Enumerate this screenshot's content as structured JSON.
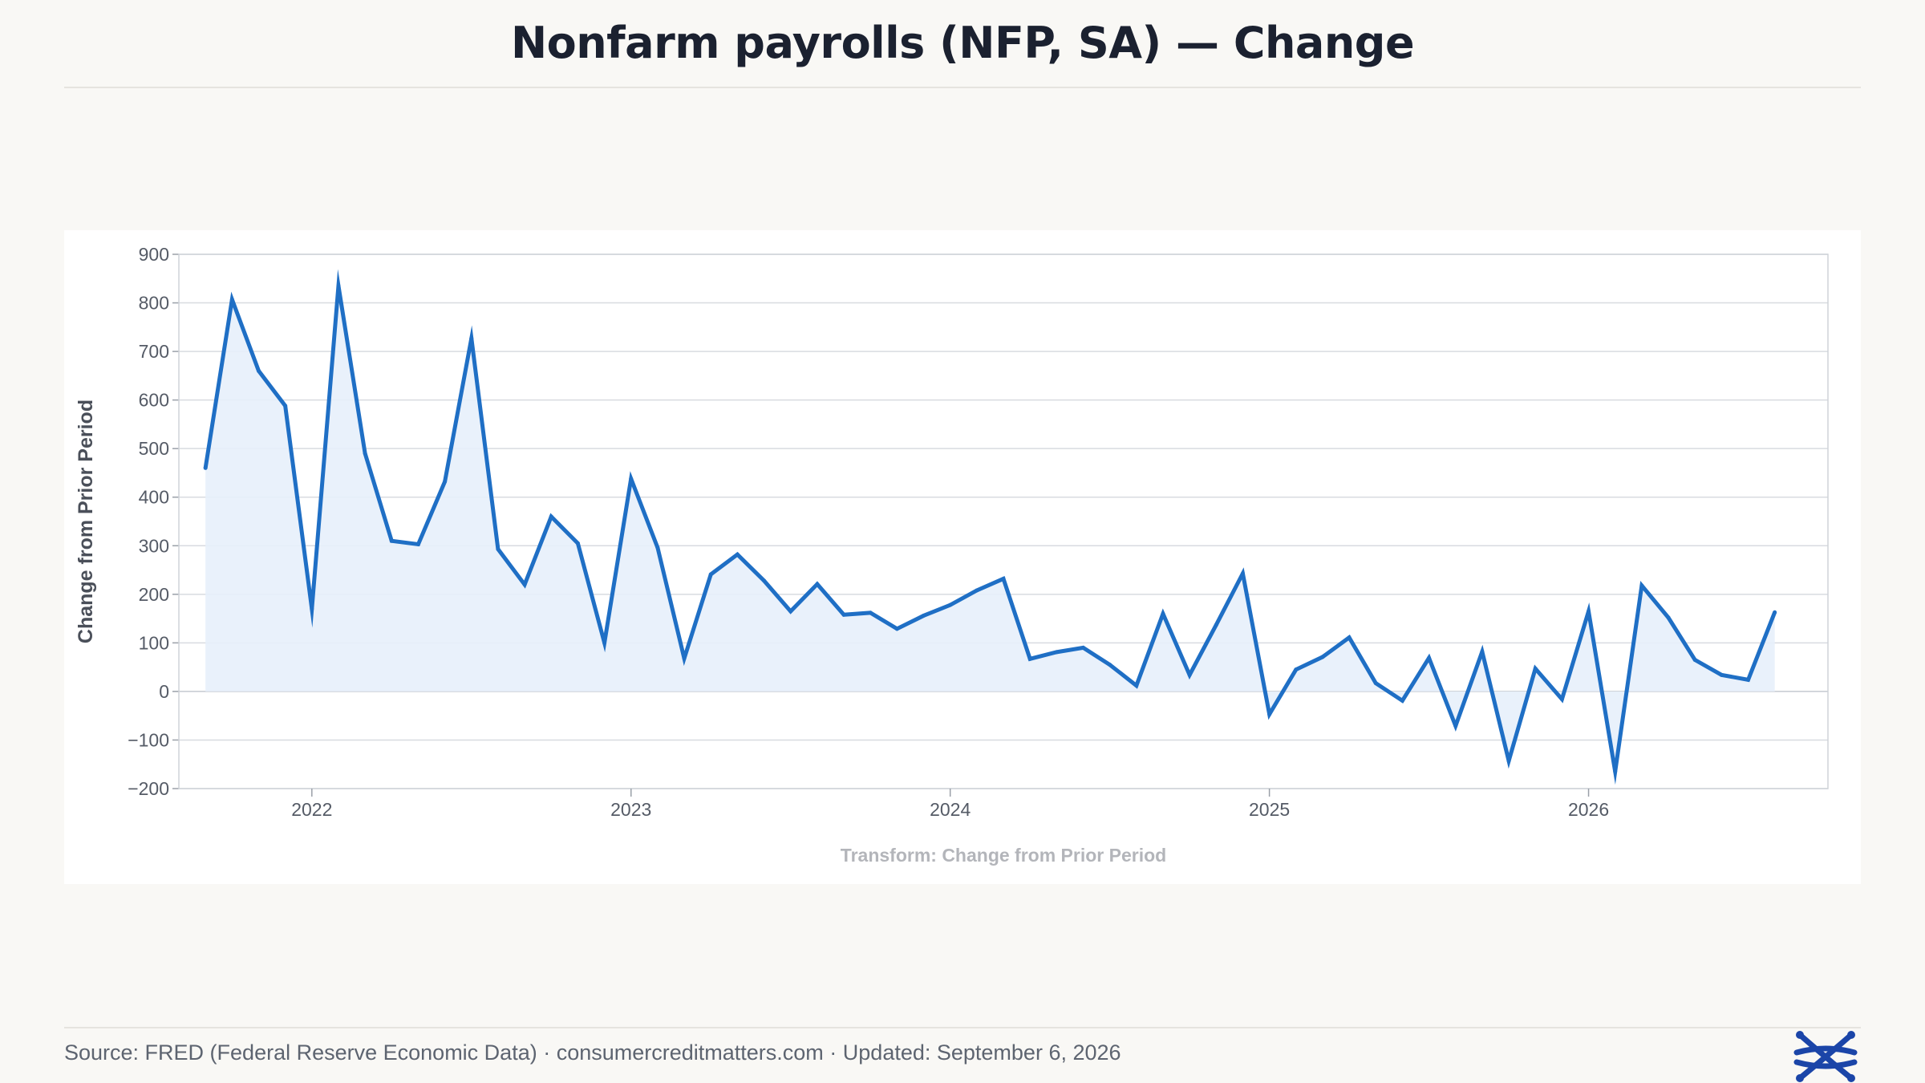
{
  "header": {
    "title": "Nonfarm payrolls (NFP, SA)  —  Change"
  },
  "footer": {
    "source": "Source: FRED (Federal Reserve Economic Data) · consumercreditmatters.com · Updated: September 6, 2026",
    "logo_icon": "network-x-logo-icon"
  },
  "colors": {
    "background": "#f9f8f5",
    "panel": "#ffffff",
    "line": "#1f6fc5",
    "area_fill": "#e7effb",
    "grid": "#d8dbe0",
    "logo": "#1b45a8"
  },
  "chart_data": {
    "type": "area",
    "title": "Nonfarm payrolls (NFP, SA)  —  Change",
    "xlabel": "",
    "ylabel": "Change from Prior Period",
    "note": "Transform: Change from Prior Period",
    "ylim": [
      -200,
      900
    ],
    "y_ticks": [
      900,
      800,
      700,
      600,
      500,
      400,
      300,
      200,
      100,
      0,
      -100,
      -200
    ],
    "y_tick_labels": [
      "900",
      "800",
      "700",
      "600",
      "500",
      "400",
      "300",
      "200",
      "100",
      "0",
      "−100",
      "−200"
    ],
    "x_ticks": [
      "2022-01",
      "2023-01",
      "2024-01",
      "2025-01",
      "2026-01"
    ],
    "x_tick_labels": [
      "2022",
      "2023",
      "2024",
      "2025",
      "2026"
    ],
    "x_range": [
      "2021-08",
      "2026-10"
    ],
    "grid": true,
    "legend": "none",
    "series": [
      {
        "x": [
          "2021-09",
          "2021-10",
          "2021-11",
          "2021-12",
          "2022-01",
          "2022-02",
          "2022-03",
          "2022-04",
          "2022-05",
          "2022-06",
          "2022-07",
          "2022-08",
          "2022-09",
          "2022-10",
          "2022-11",
          "2022-12",
          "2023-01",
          "2023-02",
          "2023-03",
          "2023-04",
          "2023-05",
          "2023-06",
          "2023-07",
          "2023-08",
          "2023-09",
          "2023-10",
          "2023-11",
          "2023-12",
          "2024-01",
          "2024-02",
          "2024-03",
          "2024-04",
          "2024-05",
          "2024-06",
          "2024-07",
          "2024-08",
          "2024-09",
          "2024-10",
          "2024-11",
          "2024-12",
          "2025-01",
          "2025-02",
          "2025-03",
          "2025-04",
          "2025-05",
          "2025-06",
          "2025-07",
          "2025-08",
          "2025-09",
          "2025-10",
          "2025-11",
          "2025-12",
          "2026-01",
          "2026-02",
          "2026-03",
          "2026-04",
          "2026-05",
          "2026-06",
          "2026-07",
          "2026-08"
        ],
        "values": [
          460,
          807,
          660,
          588,
          170,
          835,
          490,
          310,
          303,
          432,
          727,
          293,
          220,
          360,
          305,
          100,
          438,
          296,
          68,
          241,
          282,
          228,
          165,
          221,
          158,
          162,
          129,
          156,
          178,
          208,
          232,
          67,
          81,
          90,
          55,
          12,
          160,
          34,
          137,
          243,
          -47,
          45,
          71,
          111,
          17,
          -19,
          69,
          -71,
          82,
          -143,
          47,
          -16,
          165,
          -165,
          218,
          152,
          65,
          34,
          24,
          163
        ]
      }
    ]
  }
}
